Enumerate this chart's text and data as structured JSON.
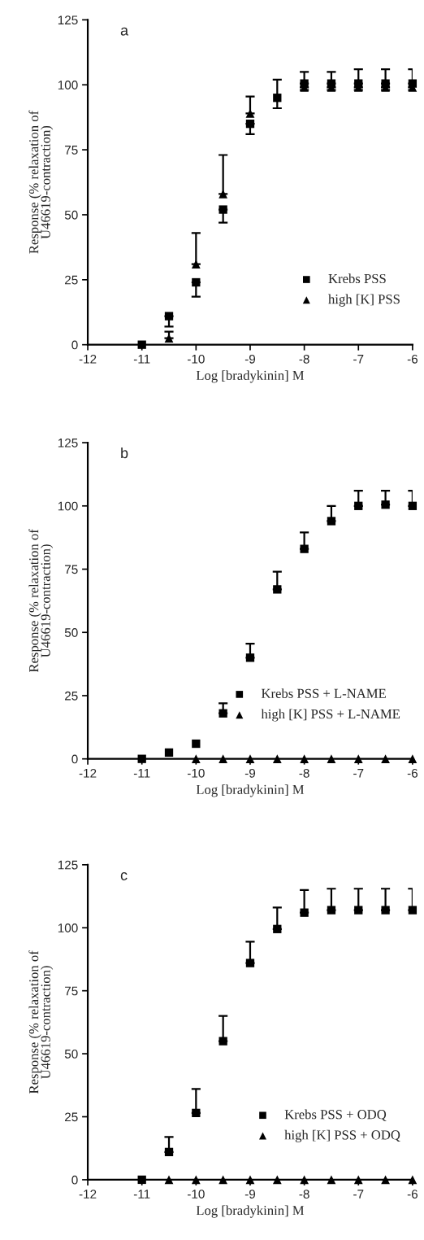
{
  "chart_data": [
    {
      "type": "scatter",
      "annotations": [
        "a"
      ],
      "xlabel": "Log [bradykinin] M",
      "ylabel": "Response (% relaxation of\nU46619-contraction)",
      "x": [
        -11,
        -10.5,
        -10,
        -9.5,
        -9,
        -8.5,
        -8,
        -7.5,
        -7,
        -6.5,
        -6
      ],
      "xlim": [
        -12,
        -6
      ],
      "xticks": [
        -12,
        -11,
        -10,
        -9,
        -8,
        -7,
        -6
      ],
      "ylim": [
        0,
        125
      ],
      "yticks": [
        0,
        25,
        50,
        75,
        100,
        125
      ],
      "grid": false,
      "legend": "bottom right",
      "series": [
        {
          "name": "Krebs PSS",
          "color": "#000000",
          "marker": "square",
          "values": [
            0,
            11,
            24,
            52,
            85,
            95,
            100.5,
            100.5,
            100.5,
            100.5,
            100.5
          ],
          "errors": [
            null,
            [
              7,
              11
            ],
            [
              18.5,
              24
            ],
            [
              47,
              52
            ],
            [
              81,
              85
            ],
            [
              91,
              102
            ],
            [
              100.5,
              105
            ],
            [
              100.5,
              105
            ],
            [
              100.5,
              106
            ],
            [
              100.5,
              106
            ],
            [
              100.5,
              106
            ]
          ]
        },
        {
          "name": "high [K] PSS",
          "color": "#000000",
          "marker": "triangle",
          "values": [
            null,
            2.5,
            31,
            58,
            89,
            null,
            99,
            99,
            99,
            99,
            99
          ],
          "errors": [
            null,
            [
              2.5,
              5
            ],
            [
              31,
              43
            ],
            [
              58,
              73
            ],
            [
              89,
              95.5
            ],
            null,
            [
              98,
              99
            ],
            [
              98,
              99
            ],
            [
              98,
              99
            ],
            [
              98,
              99
            ],
            [
              98,
              99
            ]
          ]
        }
      ]
    },
    {
      "type": "scatter",
      "annotations": [
        "b"
      ],
      "xlabel": "Log [bradykinin] M",
      "ylabel": "Response (% relaxation of\nU46619-contraction)",
      "x": [
        -11,
        -10.5,
        -10,
        -9.5,
        -9,
        -8.5,
        -8,
        -7.5,
        -7,
        -6.5,
        -6
      ],
      "xlim": [
        -12,
        -6
      ],
      "xticks": [
        -12,
        -11,
        -10,
        -9,
        -8,
        -7,
        -6
      ],
      "ylim": [
        0,
        125
      ],
      "yticks": [
        0,
        25,
        50,
        75,
        100,
        125
      ],
      "grid": false,
      "legend": "bottom right",
      "series": [
        {
          "name": "Krebs PSS + L-NAME",
          "color": "#000000",
          "marker": "square",
          "values": [
            0,
            2.5,
            6,
            18,
            40,
            67,
            83,
            94,
            100,
            100.5,
            100
          ],
          "errors": [
            null,
            null,
            null,
            [
              18,
              22
            ],
            [
              40,
              45.5
            ],
            [
              67,
              74
            ],
            [
              83,
              89.5
            ],
            [
              94,
              100
            ],
            [
              100,
              106
            ],
            [
              100.5,
              106
            ],
            [
              100,
              106
            ]
          ]
        },
        {
          "name": "high [K] PSS + L-NAME",
          "color": "#000000",
          "marker": "triangle",
          "values": [
            null,
            null,
            0,
            0,
            0,
            0,
            0,
            0,
            0,
            0,
            0
          ]
        }
      ]
    },
    {
      "type": "scatter",
      "annotations": [
        "c"
      ],
      "xlabel": "Log [bradykinin] M",
      "ylabel": "Response (% relaxation of\nU46619-contraction)",
      "x": [
        -11,
        -10.5,
        -10,
        -9.5,
        -9,
        -8.5,
        -8,
        -7.5,
        -7,
        -6.5,
        -6
      ],
      "xlim": [
        -12,
        -6
      ],
      "xticks": [
        -12,
        -11,
        -10,
        -9,
        -8,
        -7,
        -6
      ],
      "ylim": [
        0,
        125
      ],
      "yticks": [
        0,
        25,
        50,
        75,
        100,
        125
      ],
      "grid": false,
      "legend": "bottom right",
      "series": [
        {
          "name": "Krebs PSS + ODQ",
          "color": "#000000",
          "marker": "square",
          "values": [
            0,
            11,
            26.5,
            55,
            86,
            99.5,
            106,
            107,
            107,
            107,
            107
          ],
          "errors": [
            null,
            [
              11,
              17
            ],
            [
              26.5,
              36
            ],
            [
              55,
              65
            ],
            [
              86,
              94.5
            ],
            [
              99.5,
              108
            ],
            [
              106,
              115
            ],
            [
              107,
              115.5
            ],
            [
              107,
              115.5
            ],
            [
              107,
              115.5
            ],
            [
              107,
              115.5
            ]
          ]
        },
        {
          "name": "high [K] PSS + ODQ",
          "color": "#000000",
          "marker": "triangle",
          "values": [
            null,
            0,
            0,
            0,
            0,
            0,
            0,
            0,
            0,
            0,
            0
          ]
        }
      ]
    }
  ]
}
